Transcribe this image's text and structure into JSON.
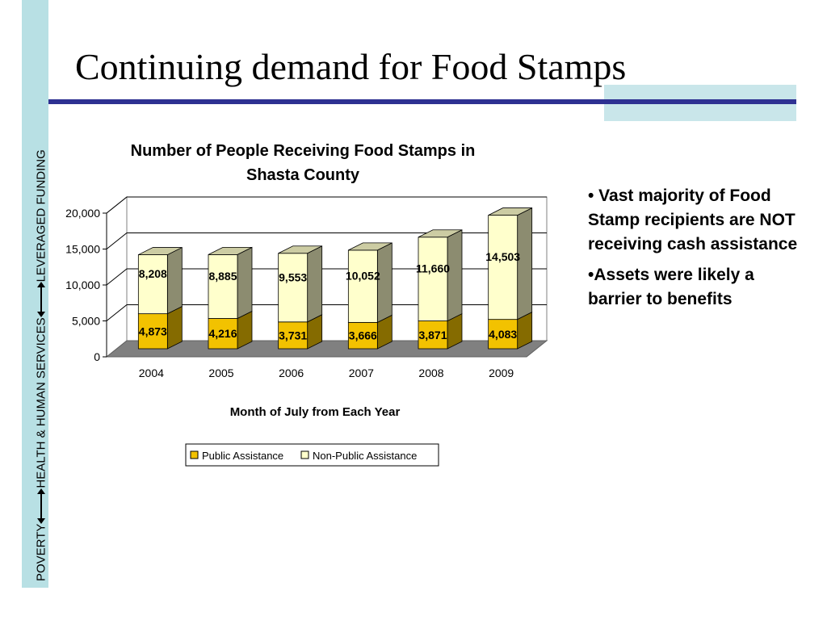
{
  "sidebar": {
    "left": "POVERTY",
    "middle": "HEALTH & HUMAN SERVICES",
    "right": "LEVERAGED FUNDING"
  },
  "slide": {
    "title": "Continuing demand for Food Stamps",
    "bullets": [
      "• Vast majority of Food Stamp recipients are NOT receiving cash assistance",
      "•Assets were likely a barrier to benefits"
    ]
  },
  "colors": {
    "accent_rule": "#2e3192",
    "sidebar_bg": "#b8e0e4",
    "public_assistance": "#f2c200",
    "non_public_assistance": "#ffffcc",
    "floor": "#808080"
  },
  "chart_data": {
    "type": "bar",
    "stacked": true,
    "three_d": true,
    "title": "Number of People Receiving Food Stamps in Shasta County",
    "title_lines": [
      "Number of People Receiving Food Stamps in",
      "Shasta County"
    ],
    "xlabel": "Month of July from Each Year",
    "ylabel": "",
    "categories": [
      "2004",
      "2005",
      "2006",
      "2007",
      "2008",
      "2009"
    ],
    "ylim": [
      0,
      20000
    ],
    "yticks": [
      0,
      5000,
      10000,
      15000,
      20000
    ],
    "ytick_labels": [
      "0",
      "5,000",
      "10,000",
      "15,000",
      "20,000"
    ],
    "grid": true,
    "legend": "bottom",
    "series": [
      {
        "name": "Public Assistance",
        "values": [
          4873,
          4216,
          3731,
          3666,
          3871,
          4083
        ],
        "labels": [
          "4,873",
          "4,216",
          "3,731",
          "3,666",
          "3,871",
          "4,083"
        ]
      },
      {
        "name": "Non-Public Assistance",
        "values": [
          8208,
          8885,
          9553,
          10052,
          11660,
          14503
        ],
        "labels": [
          "8,208",
          "8,885",
          "9,553",
          "10,052",
          "11,660",
          "14,503"
        ]
      }
    ]
  }
}
